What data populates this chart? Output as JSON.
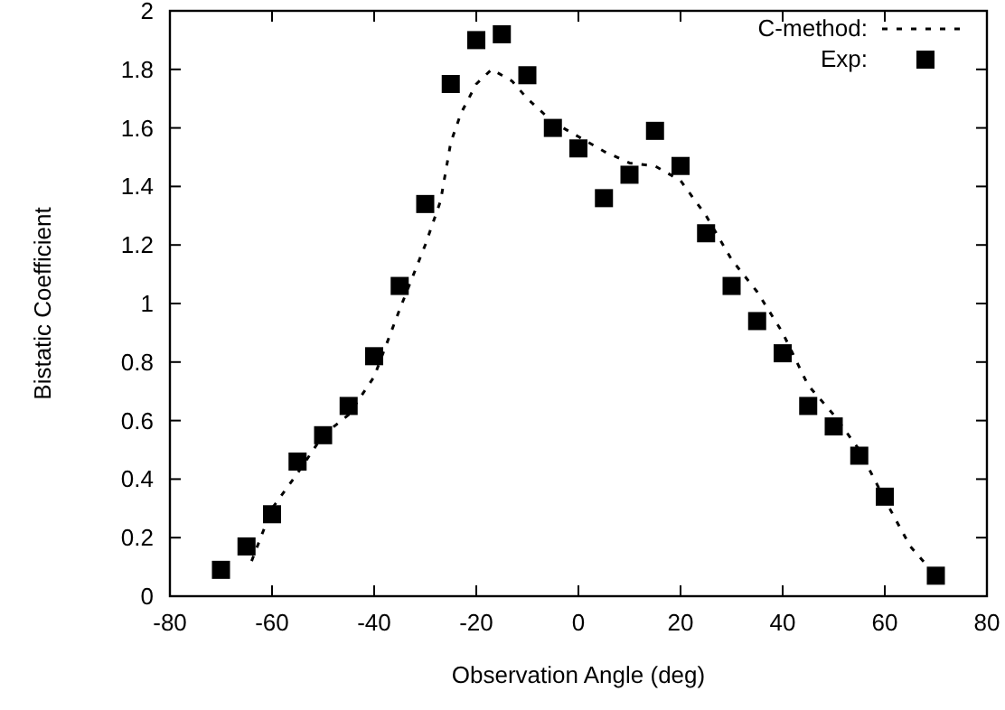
{
  "chart_data": {
    "type": "line",
    "xlabel": "Observation Angle (deg)",
    "ylabel": "Bistatic Coefficient",
    "xlim": [
      -80,
      80
    ],
    "xticks": [
      -80,
      -60,
      -40,
      -20,
      0,
      20,
      40,
      60,
      80
    ],
    "ylim": [
      0,
      2
    ],
    "yticks": [
      0,
      0.2,
      0.4,
      0.6,
      0.8,
      1,
      1.2,
      1.4,
      1.6,
      1.8,
      2
    ],
    "legend": "top right",
    "grid": false,
    "series": [
      {
        "name": "C-method:",
        "line_style": "dotted",
        "color": "#000000",
        "x": [
          -64,
          -60,
          -55,
          -50,
          -45,
          -40,
          -35,
          -30,
          -27,
          -25,
          -23,
          -20,
          -17,
          -15,
          -13,
          -10,
          -5,
          0,
          5,
          10,
          15,
          20,
          25,
          30,
          35,
          40,
          45,
          50,
          55,
          60,
          65,
          70
        ],
        "values": [
          0.12,
          0.3,
          0.42,
          0.55,
          0.62,
          0.75,
          0.98,
          1.2,
          1.35,
          1.55,
          1.65,
          1.75,
          1.8,
          1.78,
          1.76,
          1.7,
          1.62,
          1.57,
          1.52,
          1.48,
          1.47,
          1.42,
          1.3,
          1.15,
          1.04,
          0.9,
          0.72,
          0.62,
          0.5,
          0.33,
          0.17,
          0.07
        ]
      },
      {
        "name": "Exp:",
        "type": "scatter",
        "marker": "square",
        "color": "#000000",
        "x": [
          -70,
          -65,
          -60,
          -55,
          -50,
          -45,
          -40,
          -35,
          -30,
          -25,
          -20,
          -15,
          -10,
          -5,
          0,
          5,
          10,
          15,
          20,
          25,
          30,
          35,
          40,
          45,
          50,
          55,
          60,
          70
        ],
        "values": [
          0.09,
          0.17,
          0.28,
          0.46,
          0.55,
          0.65,
          0.82,
          1.06,
          1.34,
          1.75,
          1.9,
          1.92,
          1.78,
          1.6,
          1.53,
          1.36,
          1.44,
          1.59,
          1.47,
          1.24,
          1.06,
          0.94,
          0.83,
          0.65,
          0.58,
          0.48,
          0.34,
          0.07
        ]
      }
    ]
  }
}
